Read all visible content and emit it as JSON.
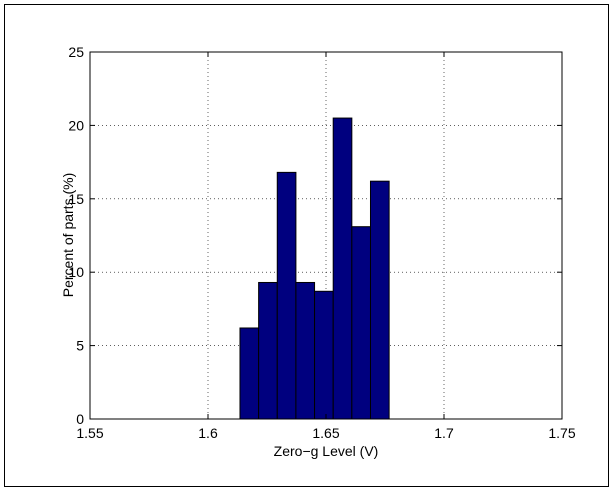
{
  "chart_data": {
    "type": "bar",
    "title": "",
    "xlabel": "Zero−g Level (V)",
    "ylabel": "Percent of parts (%)",
    "xlim": [
      1.55,
      1.75
    ],
    "ylim": [
      0,
      25
    ],
    "grid": true,
    "xticks": [
      1.55,
      1.6,
      1.65,
      1.7,
      1.75
    ],
    "xtick_labels": [
      "1.55",
      "1.6",
      "1.65",
      "1.7",
      "1.75"
    ],
    "yticks": [
      0,
      5,
      10,
      15,
      20,
      25
    ],
    "ytick_labels": [
      "0",
      "5",
      "10",
      "15",
      "20",
      "25"
    ],
    "bin_width": 0.0079,
    "bins": [
      {
        "center": 1.6175,
        "value": 6.2
      },
      {
        "center": 1.6254,
        "value": 9.3
      },
      {
        "center": 1.6333,
        "value": 16.8
      },
      {
        "center": 1.6412,
        "value": 9.3
      },
      {
        "center": 1.6491,
        "value": 8.7
      },
      {
        "center": 1.657,
        "value": 20.5
      },
      {
        "center": 1.6649,
        "value": 13.1
      },
      {
        "center": 1.6728,
        "value": 16.2
      }
    ],
    "bar_color": "#00007f",
    "edge_color": "#000000"
  }
}
